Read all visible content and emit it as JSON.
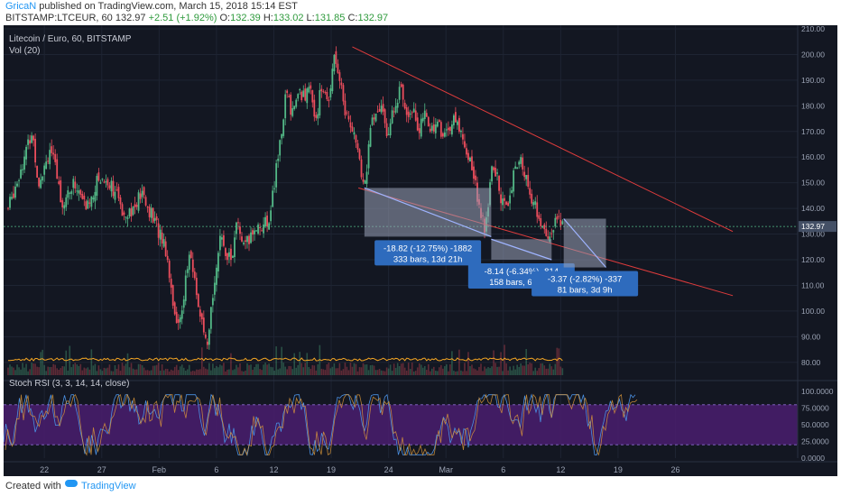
{
  "header": {
    "author": "GricaN",
    "published": "published on TradingView.com, March 15, 2018 15:14 EST",
    "symbol": "BITSTAMP:LTCEUR, 60",
    "last": "132.97",
    "change": "+2.51 (+1.92%)",
    "o_label": "O:",
    "o": "132.39",
    "h_label": "H:",
    "h": "133.02",
    "l_label": "L:",
    "l": "131.85",
    "c_label": "C:",
    "c": "132.97"
  },
  "legend": {
    "title": "Litecoin / Euro, 60, BITSTAMP",
    "volume": "Vol (20)",
    "rsi": "Stoch RSI (3, 3, 14, 14, close)"
  },
  "footer": {
    "created": "Created with",
    "brand": "TradingView"
  },
  "colors": {
    "background": "#131722",
    "up": "#53b987",
    "down": "#eb4d5c",
    "trendline": "#e03c3c",
    "measure": "#9fb4ff",
    "rsi_band": "#4a1d6e",
    "price_tag": "#445066",
    "label_box": "#2e6bbd",
    "volume": "#f5a623"
  },
  "chart_data": [
    {
      "type": "candlestick",
      "title": "Litecoin / Euro, 60, BITSTAMP",
      "x_ticks": [
        "22",
        "27",
        "Feb",
        "6",
        "12",
        "19",
        "24",
        "Mar",
        "6",
        "12",
        "19",
        "26"
      ],
      "y_ticks": [
        "80.00",
        "90.00",
        "100.00",
        "110.00",
        "120.00",
        "130.00",
        "140.00",
        "150.00",
        "160.00",
        "170.00",
        "180.00",
        "190.00",
        "200.00",
        "210.00"
      ],
      "ylim": [
        75,
        210
      ],
      "last_price": "132.97",
      "close_path": [
        [
          0,
          140
        ],
        [
          2,
          155
        ],
        [
          4,
          170
        ],
        [
          5,
          150
        ],
        [
          7,
          164
        ],
        [
          9,
          142
        ],
        [
          11,
          150
        ],
        [
          13,
          140
        ],
        [
          15,
          152
        ],
        [
          17,
          150
        ],
        [
          19,
          139
        ],
        [
          21,
          140
        ],
        [
          22,
          146
        ],
        [
          24,
          136
        ],
        [
          26,
          126
        ],
        [
          27,
          110
        ],
        [
          28,
          92
        ],
        [
          29,
          105
        ],
        [
          30,
          122
        ],
        [
          31,
          111
        ],
        [
          32,
          95
        ],
        [
          33,
          84
        ],
        [
          34,
          110
        ],
        [
          35,
          127
        ],
        [
          36,
          124
        ],
        [
          37,
          120
        ],
        [
          38,
          135
        ],
        [
          39,
          124
        ],
        [
          40,
          128
        ],
        [
          41,
          133
        ],
        [
          43,
          134
        ],
        [
          44,
          148
        ],
        [
          45,
          165
        ],
        [
          46,
          185
        ],
        [
          47,
          178
        ],
        [
          48,
          184
        ],
        [
          50,
          185
        ],
        [
          51,
          176
        ],
        [
          52,
          188
        ],
        [
          53,
          180
        ],
        [
          54,
          202
        ],
        [
          55,
          189
        ],
        [
          56,
          176
        ],
        [
          57,
          172
        ],
        [
          58,
          160
        ],
        [
          59,
          147
        ],
        [
          60,
          172
        ],
        [
          61,
          176
        ],
        [
          62,
          180
        ],
        [
          63,
          167
        ],
        [
          64,
          182
        ],
        [
          65,
          186
        ],
        [
          66,
          178
        ],
        [
          67,
          180
        ],
        [
          68,
          170
        ],
        [
          69,
          176
        ],
        [
          70,
          171
        ],
        [
          71,
          174
        ],
        [
          72,
          168
        ],
        [
          73,
          172
        ],
        [
          74,
          174
        ],
        [
          75,
          170
        ],
        [
          76,
          162
        ],
        [
          77,
          154
        ],
        [
          78,
          142
        ],
        [
          79,
          129
        ],
        [
          80,
          155
        ],
        [
          81,
          152
        ],
        [
          82,
          140
        ],
        [
          83,
          145
        ],
        [
          84,
          155
        ],
        [
          85,
          158
        ],
        [
          86,
          150
        ],
        [
          87,
          141
        ],
        [
          88,
          137
        ],
        [
          89,
          128
        ],
        [
          90,
          130
        ],
        [
          91,
          136
        ],
        [
          92,
          133
        ]
      ],
      "volume_avg": 16,
      "trendlines": [
        {
          "from": [
            57,
            203
          ],
          "to": [
            120,
            131
          ]
        },
        {
          "from": [
            58,
            148
          ],
          "to": [
            120,
            106
          ]
        }
      ],
      "measures": [
        {
          "lines": [
            "-18.82 (-12.75%) -1882",
            "333 bars, 13d 21h"
          ],
          "from": [
            59,
            148
          ],
          "to": [
            80,
            129
          ]
        },
        {
          "lines": [
            "-8.14 (-6.34%) -814",
            "158 bars, 6d 14h"
          ],
          "from": [
            80,
            128
          ],
          "to": [
            90,
            120
          ]
        },
        {
          "lines": [
            "-3.37 (-2.82%) -337",
            "81 bars, 3d 9h"
          ],
          "from": [
            92,
            136
          ],
          "to": [
            99,
            117
          ]
        }
      ]
    },
    {
      "type": "line",
      "title": "Stoch RSI (3, 3, 14, 14, close)",
      "y_ticks": [
        "0.0000",
        "25.0000",
        "50.0000",
        "75.0000",
        "100.0000"
      ],
      "ylim": [
        0,
        100
      ],
      "bands": [
        20,
        80
      ],
      "amplitude": [
        5,
        95
      ]
    }
  ]
}
